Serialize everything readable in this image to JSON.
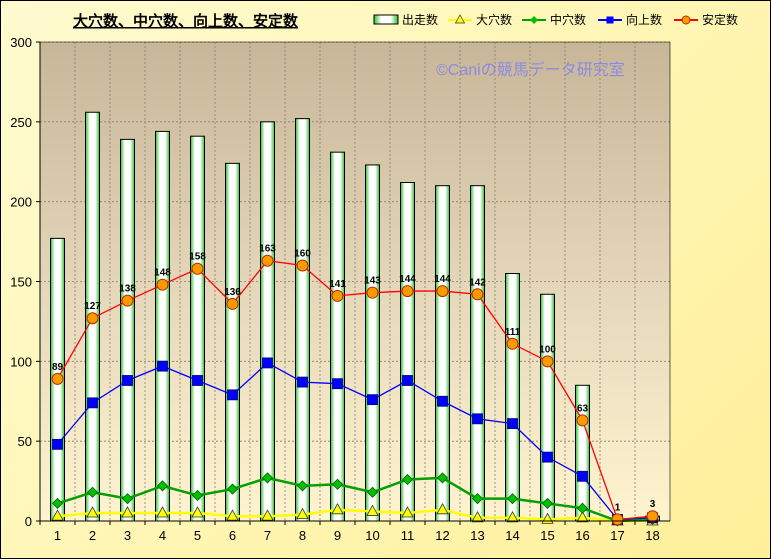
{
  "chart_data": {
    "type": "bar",
    "title": "大穴数、中穴数、向上数、安定数",
    "watermark": "©Caniの競馬データ研究室",
    "categories": [
      "1",
      "2",
      "3",
      "4",
      "5",
      "6",
      "7",
      "8",
      "9",
      "10",
      "11",
      "12",
      "13",
      "14",
      "15",
      "16",
      "17",
      "18"
    ],
    "ylim": [
      0,
      300
    ],
    "yticks": [
      0,
      50,
      100,
      150,
      200,
      250,
      300
    ],
    "grid": true,
    "legend_position": "top-right",
    "series": [
      {
        "name": "出走数",
        "kind": "bar",
        "color": "#22aa22",
        "values": [
          177,
          256,
          239,
          244,
          241,
          224,
          250,
          252,
          231,
          223,
          212,
          210,
          210,
          155,
          142,
          85,
          1,
          3
        ]
      },
      {
        "name": "大穴数",
        "kind": "line",
        "marker": "triangle",
        "color": "#ffff00",
        "values": [
          3,
          5,
          5,
          5,
          5,
          3,
          3,
          4,
          7,
          6,
          5,
          7,
          2,
          2,
          1,
          2,
          0,
          0
        ]
      },
      {
        "name": "中穴数",
        "kind": "line",
        "marker": "diamond",
        "color": "#00a000",
        "values": [
          11,
          18,
          14,
          22,
          16,
          20,
          27,
          22,
          23,
          18,
          26,
          27,
          14,
          14,
          11,
          8,
          0,
          1
        ]
      },
      {
        "name": "向上数",
        "kind": "line",
        "marker": "square",
        "color": "#0000ff",
        "values": [
          48,
          74,
          88,
          97,
          88,
          79,
          99,
          87,
          86,
          76,
          88,
          75,
          64,
          61,
          40,
          28,
          1,
          2
        ]
      },
      {
        "name": "安定数",
        "kind": "line",
        "marker": "circle",
        "color": "#ff0000",
        "values": [
          89,
          127,
          138,
          148,
          158,
          136,
          163,
          160,
          141,
          143,
          144,
          144,
          142,
          111,
          100,
          63,
          1,
          3
        ]
      }
    ],
    "data_labels_series": "安定数"
  }
}
